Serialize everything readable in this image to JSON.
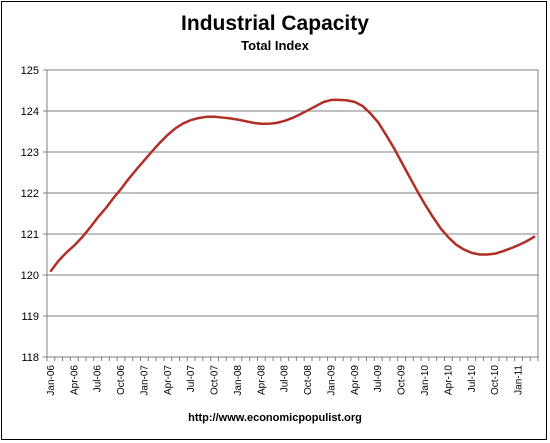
{
  "chart_data": {
    "type": "line",
    "title": "Industrial Capacity",
    "subtitle": "Total Index",
    "source": "http://www.economicpopulist.org",
    "xlabel": "",
    "ylabel": "",
    "ylim": [
      118,
      125
    ],
    "yticks": [
      118,
      119,
      120,
      121,
      122,
      123,
      124,
      125
    ],
    "grid": true,
    "legend": false,
    "line_color": "#b03028",
    "categories": [
      "Jan-06",
      "Feb-06",
      "Mar-06",
      "Apr-06",
      "May-06",
      "Jun-06",
      "Jul-06",
      "Aug-06",
      "Sep-06",
      "Oct-06",
      "Nov-06",
      "Dec-06",
      "Jan-07",
      "Feb-07",
      "Mar-07",
      "Apr-07",
      "May-07",
      "Jun-07",
      "Jul-07",
      "Aug-07",
      "Sep-07",
      "Oct-07",
      "Nov-07",
      "Dec-07",
      "Jan-08",
      "Feb-08",
      "Mar-08",
      "Apr-08",
      "May-08",
      "Jun-08",
      "Jul-08",
      "Aug-08",
      "Sep-08",
      "Oct-08",
      "Nov-08",
      "Dec-08",
      "Jan-09",
      "Feb-09",
      "Mar-09",
      "Apr-09",
      "May-09",
      "Jun-09",
      "Jul-09",
      "Aug-09",
      "Sep-09",
      "Oct-09",
      "Nov-09",
      "Dec-09",
      "Jan-10",
      "Feb-10",
      "Mar-10",
      "Apr-10",
      "May-10",
      "Jun-10",
      "Jul-10",
      "Aug-10",
      "Sep-10",
      "Oct-10",
      "Nov-10",
      "Dec-10",
      "Jan-11",
      "Feb-11",
      "Mar-11"
    ],
    "tick_labels": [
      "Jan-06",
      "Apr-06",
      "Jul-06",
      "Oct-06",
      "Jan-07",
      "Apr-07",
      "Jul-07",
      "Oct-07",
      "Jan-08",
      "Apr-08",
      "Jul-08",
      "Oct-08",
      "Jan-09",
      "Apr-09",
      "Jul-09",
      "Oct-09",
      "Jan-10",
      "Apr-10",
      "Jul-10",
      "Oct-10",
      "Jan-11"
    ],
    "series": [
      {
        "values": [
          120.1,
          120.35,
          120.55,
          120.72,
          120.92,
          121.15,
          121.4,
          121.62,
          121.87,
          122.1,
          122.35,
          122.58,
          122.8,
          123.02,
          123.23,
          123.42,
          123.58,
          123.7,
          123.78,
          123.83,
          123.86,
          123.86,
          123.84,
          123.82,
          123.79,
          123.75,
          123.71,
          123.69,
          123.69,
          123.71,
          123.76,
          123.83,
          123.92,
          124.02,
          124.12,
          124.22,
          124.27,
          124.27,
          124.26,
          124.22,
          124.12,
          123.94,
          123.72,
          123.42,
          123.1,
          122.75,
          122.4,
          122.05,
          121.72,
          121.42,
          121.14,
          120.92,
          120.74,
          120.62,
          120.54,
          120.5,
          120.5,
          120.52,
          120.58,
          120.65,
          120.73,
          120.82,
          120.93
        ]
      }
    ]
  }
}
